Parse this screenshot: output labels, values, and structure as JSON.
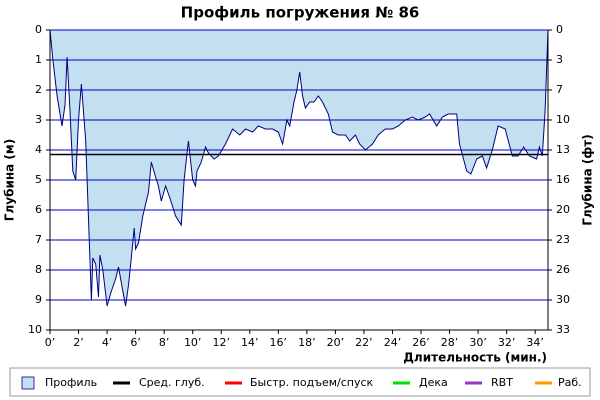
{
  "chart_data": {
    "type": "line",
    "title": "Профиль погружения № 86",
    "x_label": "Длительность (мин.)",
    "y_label": "Глубина (м)",
    "y2_label": "Глубина (фт)",
    "xlim": [
      0,
      34.9
    ],
    "ylim": [
      10,
      0
    ],
    "y2lim": [
      32.81,
      0
    ],
    "xticks": [
      {
        "value": 0,
        "label": "0’"
      },
      {
        "value": 2,
        "label": "2’"
      },
      {
        "value": 4,
        "label": "4’"
      },
      {
        "value": 6,
        "label": "6’"
      },
      {
        "value": 8,
        "label": "8’"
      },
      {
        "value": 10,
        "label": "10’"
      },
      {
        "value": 12,
        "label": "12’"
      },
      {
        "value": 14,
        "label": "14’"
      },
      {
        "value": 16,
        "label": "16’"
      },
      {
        "value": 18,
        "label": "18’"
      },
      {
        "value": 20,
        "label": "20’"
      },
      {
        "value": 22,
        "label": "22’"
      },
      {
        "value": 24,
        "label": "24’"
      },
      {
        "value": 26,
        "label": "26’"
      },
      {
        "value": 28,
        "label": "28’"
      },
      {
        "value": 30,
        "label": "30’"
      },
      {
        "value": 32,
        "label": "32’"
      },
      {
        "value": 34,
        "label": "34’"
      }
    ],
    "yticks": [
      0,
      1,
      2,
      3,
      4,
      5,
      6,
      7,
      8,
      9,
      10
    ],
    "y2ticks": [
      0,
      {
        "value": 3.28,
        "label": "3"
      },
      {
        "value": 6.56,
        "label": "7"
      },
      {
        "value": 9.84,
        "label": "10"
      },
      {
        "value": 13.12,
        "label": "13"
      },
      {
        "value": 16.4,
        "label": "16"
      },
      {
        "value": 19.69,
        "label": "20"
      },
      {
        "value": 22.97,
        "label": "23"
      },
      {
        "value": 26.25,
        "label": "26"
      },
      {
        "value": 29.53,
        "label": "30"
      },
      {
        "value": 32.81,
        "label": "33"
      }
    ],
    "grid": true,
    "grid_color": "#0000c8",
    "x": [
      0,
      0.2,
      0.5,
      0.84,
      1.05,
      1.2,
      1.4,
      1.6,
      1.8,
      2.0,
      2.2,
      2.5,
      2.7,
      2.9,
      3.0,
      3.2,
      3.4,
      3.5,
      3.7,
      4.0,
      4.3,
      4.6,
      4.8,
      5.1,
      5.3,
      5.5,
      5.7,
      5.9,
      6.0,
      6.2,
      6.5,
      6.9,
      7.1,
      7.4,
      7.6,
      7.8,
      8.1,
      8.4,
      8.8,
      9.2,
      9.4,
      9.7,
      10.0,
      10.2,
      10.3,
      10.6,
      10.9,
      11.1,
      11.5,
      11.8,
      12.3,
      12.8,
      13.3,
      13.7,
      14.2,
      14.6,
      15.1,
      15.6,
      16.0,
      16.3,
      16.6,
      16.8,
      17.1,
      17.3,
      17.5,
      17.7,
      17.9,
      18.2,
      18.5,
      18.8,
      19.1,
      19.5,
      19.8,
      20.2,
      20.7,
      21.0,
      21.4,
      21.7,
      22.1,
      22.6,
      23.0,
      23.5,
      24.0,
      24.4,
      24.9,
      25.4,
      25.8,
      26.3,
      26.6,
      27.1,
      27.5,
      27.9,
      28.5,
      28.7,
      29.2,
      29.5,
      29.9,
      30.3,
      30.6,
      31.0,
      31.4,
      31.9,
      32.4,
      32.8,
      33.2,
      33.6,
      34.1,
      34.3,
      34.5,
      34.7,
      34.9
    ],
    "series": [
      {
        "name": "Профиль",
        "color": "#c3e0f0",
        "line_color": "#000080",
        "values": [
          0,
          1.0,
          2.2,
          3.2,
          2.5,
          0.9,
          2.7,
          4.7,
          5.0,
          3.0,
          1.8,
          3.7,
          6.3,
          9.0,
          7.6,
          7.8,
          8.9,
          7.5,
          8.0,
          9.2,
          8.7,
          8.3,
          7.9,
          8.7,
          9.2,
          8.5,
          7.6,
          6.6,
          7.3,
          7.1,
          6.2,
          5.4,
          4.4,
          4.9,
          5.2,
          5.7,
          5.2,
          5.6,
          6.2,
          6.5,
          5.0,
          3.7,
          5.0,
          5.2,
          4.7,
          4.4,
          3.9,
          4.1,
          4.3,
          4.2,
          3.8,
          3.3,
          3.5,
          3.3,
          3.4,
          3.2,
          3.3,
          3.3,
          3.4,
          3.8,
          3.0,
          3.2,
          2.4,
          2.0,
          1.4,
          2.2,
          2.6,
          2.4,
          2.4,
          2.2,
          2.4,
          2.8,
          3.4,
          3.5,
          3.5,
          3.7,
          3.5,
          3.8,
          4.0,
          3.8,
          3.5,
          3.3,
          3.3,
          3.2,
          3.0,
          2.9,
          3.0,
          2.9,
          2.8,
          3.2,
          2.9,
          2.8,
          2.8,
          3.8,
          4.7,
          4.8,
          4.3,
          4.2,
          4.6,
          4.0,
          3.2,
          3.3,
          4.2,
          4.2,
          3.9,
          4.2,
          4.3,
          3.9,
          4.2,
          2.7,
          0
        ]
      },
      {
        "name": "Сред. глуб.",
        "color": "#000000",
        "value": 4.15
      },
      {
        "name": "Быстр. подъем/спуск",
        "color": "#ff0000"
      },
      {
        "name": "Дека",
        "color": "#00e000"
      },
      {
        "name": "RBT",
        "color": "#9933cc"
      },
      {
        "name": "Раб.",
        "color": "#ff9900"
      }
    ]
  }
}
